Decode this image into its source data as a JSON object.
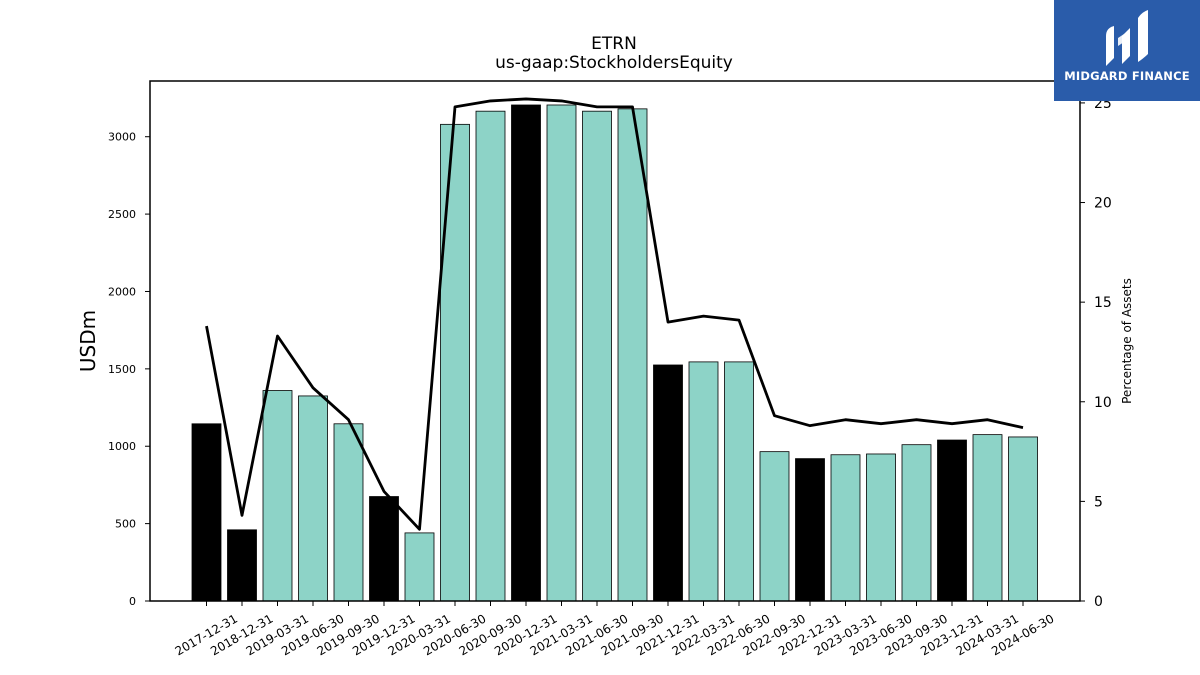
{
  "chart_data": {
    "type": "bar",
    "title": "ETRN",
    "subtitle": "us-gaap:StockholdersEquity",
    "ylabel": "USDm",
    "y2label": "Percentage of Assets",
    "ylim": [
      0,
      3360
    ],
    "y2lim": [
      0,
      26.1
    ],
    "yticks": [
      0,
      500,
      1000,
      1500,
      2000,
      2500,
      3000
    ],
    "y2ticks": [
      0,
      5,
      10,
      15,
      20,
      25
    ],
    "categories": [
      "2017-12-31",
      "2018-12-31",
      "2019-03-31",
      "2019-06-30",
      "2019-09-30",
      "2019-12-31",
      "2020-03-31",
      "2020-06-30",
      "2020-09-30",
      "2020-12-31",
      "2021-03-31",
      "2021-06-30",
      "2021-09-30",
      "2021-12-31",
      "2022-03-31",
      "2022-06-30",
      "2022-09-30",
      "2022-12-31",
      "2023-03-31",
      "2023-06-30",
      "2023-09-30",
      "2023-12-31",
      "2024-03-31",
      "2024-06-30"
    ],
    "series": [
      {
        "values": [
          1145,
          460,
          1360,
          1325,
          1145,
          675,
          440,
          3080,
          3165,
          3205,
          3205,
          3165,
          3180,
          1525,
          1545,
          1545,
          965,
          920,
          945,
          950,
          1010,
          1040,
          1075,
          1060
        ],
        "annual": [
          true,
          true,
          false,
          false,
          false,
          true,
          false,
          false,
          false,
          true,
          false,
          false,
          false,
          true,
          false,
          false,
          false,
          true,
          false,
          false,
          false,
          true,
          false,
          false
        ]
      },
      {
        "axis": "right",
        "values": [
          13.8,
          4.3,
          13.3,
          10.7,
          9.1,
          5.5,
          3.6,
          24.8,
          25.1,
          25.2,
          25.1,
          24.8,
          24.8,
          14.0,
          14.3,
          14.1,
          9.3,
          8.8,
          9.1,
          8.9,
          9.1,
          8.9,
          9.1,
          8.7
        ]
      }
    ],
    "colors": {
      "annual_bar": "#000000",
      "quarter_bar": "#8dd3c7",
      "line": "#000000"
    }
  },
  "logo": {
    "text": "MIDGARD FINANCE",
    "background": "#2a5caa"
  }
}
